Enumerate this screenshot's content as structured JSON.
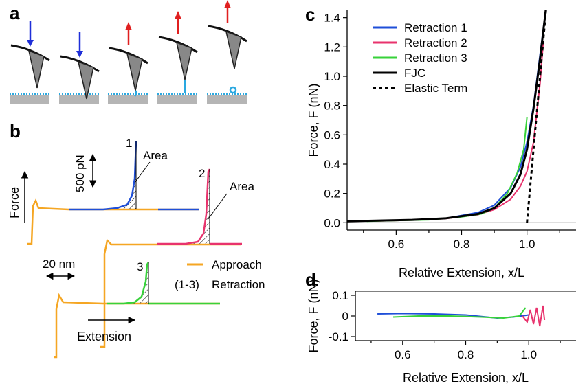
{
  "panels": {
    "a": {
      "letter": "a"
    },
    "b": {
      "letter": "b",
      "force_label": "Force",
      "scale_force": "500 pN",
      "scale_ext": "20 nm",
      "extension_label": "Extension",
      "area_label": "Area",
      "trace_numbers": [
        "1",
        "2",
        "3"
      ],
      "legend": [
        {
          "label": "Approach",
          "prefix": "",
          "color": "#f5a623"
        },
        {
          "label": "Retraction",
          "prefix": "(1-3)",
          "color": ""
        }
      ]
    },
    "c": {
      "letter": "c"
    },
    "d": {
      "letter": "d"
    }
  },
  "colors": {
    "approach": "#f5a623",
    "retraction_1": "#1f4fd8",
    "retraction_2": "#e8336d",
    "retraction_3": "#37d23a",
    "fjc": "#000000",
    "arrow_down": "#1f2fd8",
    "arrow_up": "#e02020",
    "molecule": "#2aa8e0",
    "substrate": "#b5b5b5"
  },
  "chart_data": [
    {
      "panel": "c",
      "type": "line",
      "xlabel": "Relative Extension, x/L",
      "ylabel": "Force, F (nN)",
      "xlim": [
        0.45,
        1.15
      ],
      "ylim": [
        -0.05,
        1.45
      ],
      "xticks": [
        "0.6",
        "0.8",
        "1.0"
      ],
      "yticks": [
        "0.0",
        "0.2",
        "0.4",
        "0.6",
        "0.8",
        "1.0",
        "1.2",
        "1.4"
      ],
      "legend_position": "top-left",
      "series": [
        {
          "name": "Retraction 1",
          "style": "solid",
          "x": [
            0.45,
            0.55,
            0.65,
            0.75,
            0.85,
            0.9,
            0.95,
            0.98,
            1.0,
            1.02,
            1.04,
            1.06
          ],
          "y": [
            0.01,
            0.015,
            0.02,
            0.03,
            0.07,
            0.12,
            0.24,
            0.38,
            0.55,
            0.8,
            1.15,
            1.5
          ]
        },
        {
          "name": "Retraction 2",
          "style": "solid",
          "x": [
            0.45,
            0.55,
            0.65,
            0.75,
            0.85,
            0.9,
            0.95,
            0.98,
            1.0,
            1.02,
            1.04,
            1.05
          ],
          "y": [
            0.01,
            0.012,
            0.018,
            0.028,
            0.055,
            0.09,
            0.16,
            0.25,
            0.35,
            0.55,
            0.95,
            1.24
          ]
        },
        {
          "name": "Retraction 3",
          "style": "solid",
          "x": [
            0.51,
            0.6,
            0.7,
            0.8,
            0.86,
            0.9,
            0.94,
            0.97,
            0.99,
            1.0
          ],
          "y": [
            0.01,
            0.015,
            0.02,
            0.04,
            0.06,
            0.1,
            0.2,
            0.34,
            0.5,
            0.72
          ]
        },
        {
          "name": "FJC",
          "style": "solid",
          "x": [
            0.45,
            0.55,
            0.65,
            0.75,
            0.85,
            0.9,
            0.95,
            0.98,
            1.0,
            1.02,
            1.04,
            1.06
          ],
          "y": [
            0.01,
            0.015,
            0.02,
            0.03,
            0.06,
            0.1,
            0.2,
            0.33,
            0.5,
            0.78,
            1.12,
            1.5
          ]
        },
        {
          "name": "Elastic Term",
          "style": "dashed",
          "x": [
            1.0,
            1.06
          ],
          "y": [
            0.0,
            1.5
          ]
        }
      ]
    },
    {
      "panel": "d",
      "type": "line",
      "xlabel": "Relative Extension, x/L",
      "ylabel": "Force, F (nN)",
      "xlim": [
        0.45,
        1.15
      ],
      "ylim": [
        -0.12,
        0.12
      ],
      "xticks": [
        "0.6",
        "0.8",
        "1.0"
      ],
      "yticks": [
        "0.1",
        "0",
        "-0.1"
      ],
      "series": [
        {
          "color_key": "retraction_1",
          "x": [
            0.52,
            0.6,
            0.7,
            0.8,
            0.9,
            0.95,
            1.0
          ],
          "y": [
            0.01,
            0.012,
            0.01,
            0.005,
            -0.01,
            -0.005,
            0.005
          ]
        },
        {
          "color_key": "retraction_3",
          "x": [
            0.57,
            0.65,
            0.75,
            0.85,
            0.92,
            0.97,
            0.99
          ],
          "y": [
            -0.005,
            0.0,
            0.0,
            -0.005,
            -0.01,
            0.0,
            0.04
          ]
        },
        {
          "color_key": "retraction_2",
          "x": [
            0.98,
            0.995,
            1.005,
            1.015,
            1.025,
            1.035,
            1.045,
            1.05
          ],
          "y": [
            0.0,
            -0.03,
            0.03,
            -0.04,
            0.04,
            -0.05,
            0.05,
            -0.02
          ]
        }
      ]
    }
  ]
}
